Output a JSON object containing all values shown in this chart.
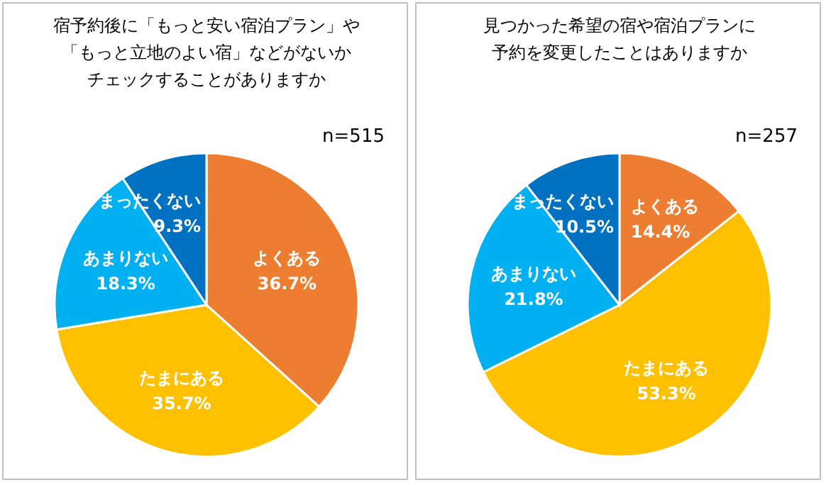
{
  "chart_data": [
    {
      "type": "pie",
      "title": "宿予約後に「もっと安い宿泊プラン」や「もっと立地のよい宿」などがないかチェックすることがありますか",
      "annotations": [
        "n=515"
      ],
      "categories": [
        "よくある",
        "たまにある",
        "あまりない",
        "まったくない"
      ],
      "values": [
        36.7,
        35.7,
        18.3,
        9.3
      ],
      "value_labels": [
        "36.7%",
        "35.7%",
        "18.3%",
        "9.3%"
      ],
      "colors": [
        "#ed7d31",
        "#ffc000",
        "#00b0f0",
        "#0070c0"
      ],
      "legend": false
    },
    {
      "type": "pie",
      "title": "見つかった希望の宿や宿泊プランに予約を変更したことはありますか",
      "annotations": [
        "n=257"
      ],
      "categories": [
        "よくある",
        "たまにある",
        "あまりない",
        "まったくない"
      ],
      "values": [
        14.4,
        53.3,
        21.8,
        10.5
      ],
      "value_labels": [
        "14.4%",
        "53.3%",
        "21.8%",
        "10.5%"
      ],
      "colors": [
        "#ed7d31",
        "#ffc000",
        "#00b0f0",
        "#0070c0"
      ],
      "legend": false
    }
  ]
}
